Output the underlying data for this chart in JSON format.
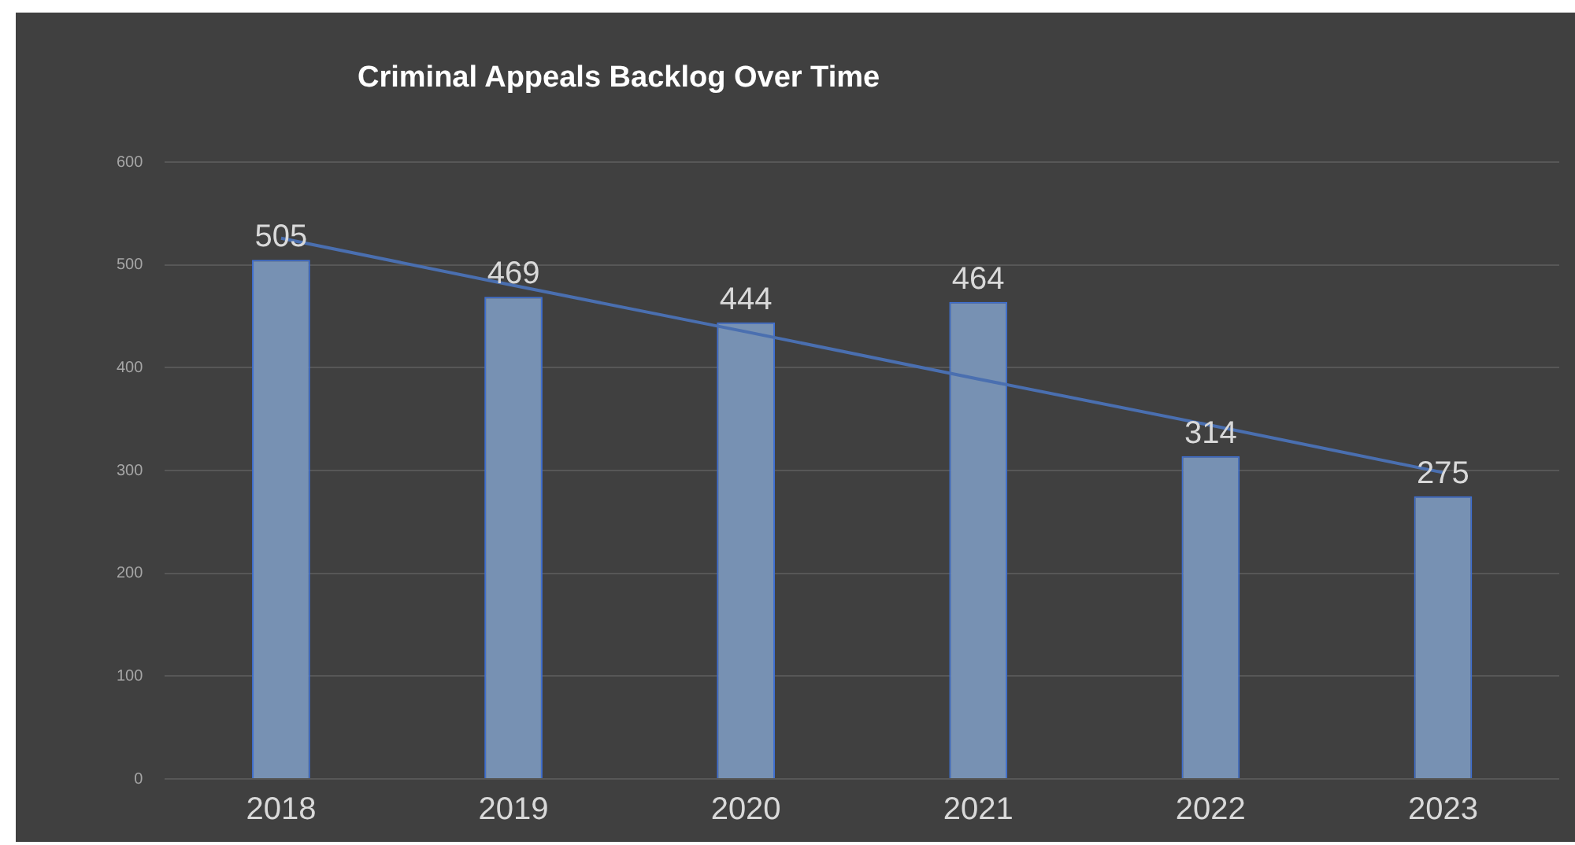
{
  "chart_data": {
    "type": "bar",
    "title": "Criminal Appeals Backlog Over Time",
    "categories": [
      "2018",
      "2019",
      "2020",
      "2021",
      "2022",
      "2023"
    ],
    "series": [
      {
        "color": "#7791b3",
        "values": [
          505,
          469,
          444,
          464,
          314,
          275
        ],
        "value_labels": [
          "505",
          "469",
          "444",
          "464",
          "314",
          "275"
        ]
      },
      {
        "type": "line",
        "color": "#4a6fb0",
        "values": [
          526,
          480,
          435,
          389,
          344,
          298
        ]
      }
    ],
    "ylim": [
      0,
      600
    ],
    "yticks": [
      0,
      100,
      200,
      300,
      400,
      500,
      600
    ],
    "grid": "y",
    "legend": false
  }
}
